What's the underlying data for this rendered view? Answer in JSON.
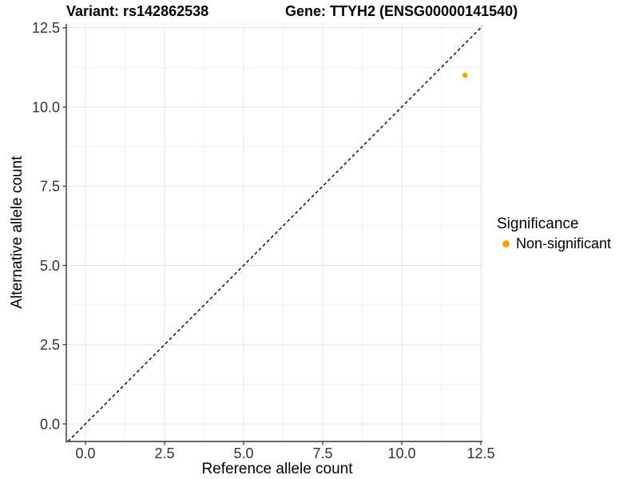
{
  "titles": {
    "variant": "Variant: rs142862538",
    "gene": "Gene: TTYH2 (ENSG00000141540)"
  },
  "chart_data": {
    "type": "scatter",
    "title_left": "Variant: rs142862538",
    "title_right": "Gene: TTYH2 (ENSG00000141540)",
    "xlabel": "Reference allele count",
    "ylabel": "Alternative allele count",
    "xlim": [
      -0.606,
      12.551
    ],
    "ylim": [
      -0.554,
      12.619
    ],
    "x_ticks": [
      0.0,
      2.5,
      5.0,
      7.5,
      10.0,
      12.5
    ],
    "y_ticks": [
      0.0,
      2.5,
      5.0,
      7.5,
      10.0,
      12.5
    ],
    "x_tick_labels": [
      "0.0",
      "2.5",
      "5.0",
      "7.5",
      "10.0",
      "12.5"
    ],
    "y_tick_labels": [
      "0.0",
      "2.5",
      "5.0",
      "7.5",
      "10.0",
      "12.5"
    ],
    "grid": true,
    "minor_grid": true,
    "identity_line": {
      "show": true,
      "style": "dashed",
      "color": "#000000"
    },
    "series": [
      {
        "name": "Non-significant",
        "color": "#FFA500",
        "points": [
          {
            "x": 12,
            "y": 11
          }
        ]
      }
    ],
    "legend": {
      "title": "Significance",
      "position": "right",
      "items": [
        {
          "label": "Non-significant",
          "color": "#FFA500"
        }
      ]
    },
    "colors": {
      "grid_major": "#E4E4E4",
      "grid_minor": "#F1F1F1",
      "axis_line": "#333333",
      "tick": "#333333",
      "tick_label": "#333333"
    }
  }
}
